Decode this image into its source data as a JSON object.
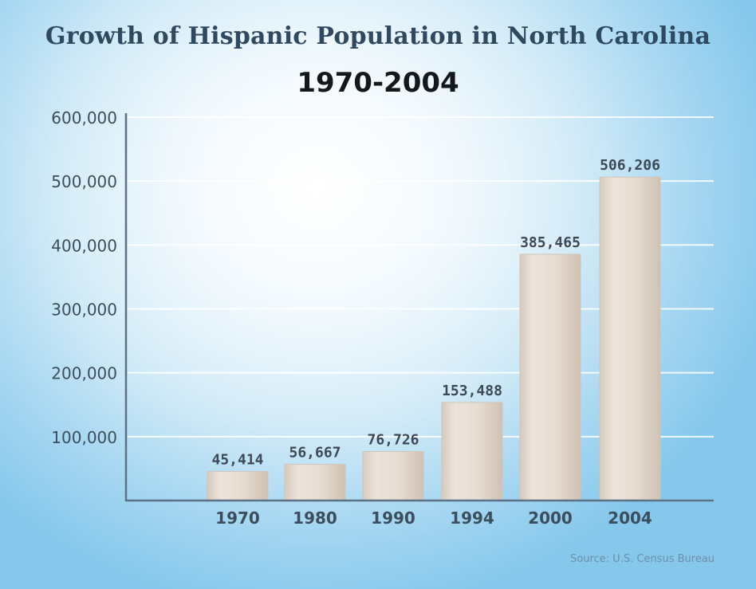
{
  "chart_data": {
    "type": "bar",
    "title": "Growth of Hispanic Population in North Carolina",
    "subtitle": "1970-2004",
    "categories": [
      "1970",
      "1980",
      "1990",
      "1994",
      "2000",
      "2004"
    ],
    "values": [
      45414,
      56667,
      76726,
      153488,
      385465,
      506206
    ],
    "value_labels": [
      "45,414",
      "56,667",
      "76,726",
      "153,488",
      "385,465",
      "506,206"
    ],
    "y_ticks": [
      "600,000",
      "500,000",
      "400,000",
      "300,000",
      "200,000",
      "100,000"
    ],
    "ylim": [
      0,
      600000
    ],
    "xlabel": "",
    "ylabel": "",
    "grid": true,
    "legend": "none",
    "source": "Source: U.S. Census Bureau"
  },
  "colors": {
    "title": "#2f4a60",
    "subtitle": "#14181b",
    "bar": "#e7ddd2",
    "bar_shade": "#d2c4b6",
    "axis": "#5c7286",
    "tick_label": "#3c4d5c",
    "value_label": "#3e4955",
    "grid": "#ffffff"
  }
}
